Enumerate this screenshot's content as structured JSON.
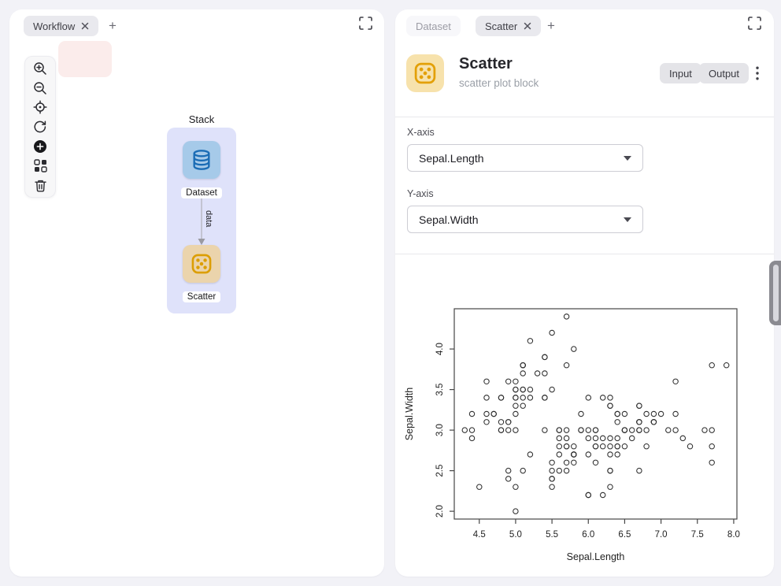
{
  "left_panel": {
    "tab": {
      "label": "Workflow"
    },
    "new_tab": "+",
    "toolbar": {
      "icons": [
        "zoom-in",
        "zoom-out",
        "locate",
        "reset-view",
        "add-node",
        "auto-layout",
        "delete"
      ]
    },
    "stack": {
      "title": "Stack",
      "nodes": [
        {
          "label": "Dataset",
          "icon": "database-icon"
        },
        {
          "label": "Scatter",
          "icon": "dice-icon"
        }
      ],
      "edge_label": "data"
    }
  },
  "right_panel": {
    "tabs": [
      {
        "label": "Dataset",
        "active": false
      },
      {
        "label": "Scatter",
        "active": true,
        "icon": "close-icon"
      }
    ],
    "new_tab": "+",
    "header": {
      "title": "Scatter",
      "subtitle": "scatter plot block",
      "input_button": "Input",
      "output_button": "Output",
      "menu_icon": "kebab-menu-icon"
    },
    "controls": {
      "x_label": "X-axis",
      "x_value": "Sepal.Length",
      "y_label": "Y-axis",
      "y_value": "Sepal.Width"
    }
  },
  "icons": {
    "close": "x-cross",
    "new_tab": "plus",
    "fullscreen": "corner-brackets",
    "zoom-in": "magnifier-plus",
    "zoom-out": "magnifier-minus",
    "locate": "crosshair-dot",
    "reset-view": "circular-arrow",
    "add-node": "filled-circle-plus",
    "auto-layout": "four-squares",
    "delete": "trash-can",
    "dataset": "database-cylinder",
    "scatter": "dice-five-dots",
    "dropdown": "caret-down"
  },
  "colors": {
    "page_bg": "#f2f2f7",
    "panel_bg": "#ffffff",
    "stack_bg": "#dfe2fa",
    "dataset_node_bg": "#a6cae9",
    "dataset_icon": "#1a6cb5",
    "scatter_node_bg": "#ebd4ac",
    "scatter_icon": "#dc9e02",
    "header_icon_bg": "#f7e2ac",
    "header_icon": "#e3a008",
    "tab_active_bg": "#e9e9ee",
    "pill_bg": "#e4e4e8",
    "edge": "#b4b4bc",
    "point_stroke": "#2e2e2e"
  },
  "chart_data": {
    "type": "scatter",
    "title": "",
    "xlabel": "Sepal.Length",
    "ylabel": "Sepal.Width",
    "xlim": [
      4.156,
      8.044
    ],
    "ylim": [
      1.904,
      4.496
    ],
    "x_ticks": [
      4.5,
      5.0,
      5.5,
      6.0,
      6.5,
      7.0,
      7.5,
      8.0
    ],
    "y_ticks": [
      2.0,
      2.5,
      3.0,
      3.5,
      4.0
    ],
    "grid": false,
    "legend": false,
    "marker": "open-circle",
    "x": [
      5.1,
      4.9,
      4.7,
      4.6,
      5.0,
      5.4,
      4.6,
      5.0,
      4.4,
      4.9,
      5.4,
      4.8,
      4.8,
      4.3,
      5.8,
      5.7,
      5.4,
      5.1,
      5.7,
      5.1,
      5.4,
      5.1,
      4.6,
      5.1,
      4.8,
      5.0,
      5.0,
      5.2,
      5.2,
      4.7,
      4.8,
      5.4,
      5.2,
      5.5,
      4.9,
      5.0,
      5.5,
      4.9,
      4.4,
      5.1,
      5.0,
      4.5,
      4.4,
      5.0,
      5.1,
      4.8,
      5.1,
      4.6,
      5.3,
      5.0,
      7.0,
      6.4,
      6.9,
      5.5,
      6.5,
      5.7,
      6.3,
      4.9,
      6.6,
      5.2,
      5.0,
      5.9,
      6.0,
      6.1,
      5.6,
      6.7,
      5.6,
      5.8,
      6.2,
      5.6,
      5.9,
      6.1,
      6.3,
      6.1,
      6.4,
      6.6,
      6.8,
      6.7,
      6.0,
      5.7,
      5.5,
      5.5,
      5.8,
      6.0,
      5.4,
      6.0,
      6.7,
      6.3,
      5.6,
      5.5,
      5.5,
      6.1,
      5.8,
      5.0,
      5.6,
      5.7,
      5.7,
      6.2,
      5.1,
      5.7,
      6.3,
      5.8,
      7.1,
      6.3,
      6.5,
      7.6,
      4.9,
      7.3,
      6.7,
      7.2,
      6.5,
      6.4,
      6.8,
      5.7,
      5.8,
      6.4,
      6.5,
      7.7,
      7.7,
      6.0,
      6.9,
      5.6,
      7.7,
      6.3,
      6.7,
      7.2,
      6.2,
      6.1,
      6.4,
      7.2,
      7.4,
      7.9,
      6.4,
      6.3,
      6.1,
      7.7,
      6.3,
      6.4,
      6.0,
      6.9,
      6.7,
      6.9,
      5.8,
      6.8,
      6.7,
      6.7,
      6.3,
      6.5,
      6.2,
      5.9
    ],
    "y": [
      3.5,
      3.0,
      3.2,
      3.1,
      3.6,
      3.9,
      3.4,
      3.4,
      2.9,
      3.1,
      3.7,
      3.4,
      3.0,
      3.0,
      4.0,
      4.4,
      3.9,
      3.5,
      3.8,
      3.8,
      3.4,
      3.7,
      3.6,
      3.3,
      3.4,
      3.0,
      3.4,
      3.5,
      3.4,
      3.2,
      3.1,
      3.4,
      4.1,
      4.2,
      3.1,
      3.2,
      3.5,
      3.6,
      3.0,
      3.4,
      3.5,
      2.3,
      3.2,
      3.5,
      3.8,
      3.0,
      3.8,
      3.2,
      3.7,
      3.3,
      3.2,
      3.2,
      3.1,
      2.3,
      2.8,
      2.8,
      3.3,
      2.4,
      2.9,
      2.7,
      2.0,
      3.0,
      2.2,
      2.9,
      2.9,
      3.1,
      3.0,
      2.7,
      2.2,
      2.5,
      3.2,
      2.8,
      2.5,
      2.8,
      2.9,
      3.0,
      2.8,
      3.0,
      2.9,
      2.6,
      2.4,
      2.4,
      2.7,
      2.7,
      3.0,
      3.4,
      3.1,
      2.3,
      3.0,
      2.5,
      2.6,
      3.0,
      2.6,
      2.3,
      2.7,
      3.0,
      2.9,
      2.9,
      2.5,
      2.8,
      3.3,
      2.7,
      3.0,
      2.9,
      3.0,
      3.0,
      2.5,
      2.9,
      2.5,
      3.6,
      3.2,
      2.7,
      3.0,
      2.5,
      2.8,
      3.2,
      3.0,
      3.8,
      2.6,
      2.2,
      3.2,
      2.8,
      2.8,
      2.7,
      3.3,
      3.2,
      2.8,
      3.0,
      2.8,
      3.0,
      2.8,
      3.8,
      2.8,
      2.8,
      2.6,
      3.0,
      3.4,
      3.1,
      3.0,
      3.1,
      3.1,
      3.1,
      2.7,
      3.2,
      3.3,
      3.0,
      2.5,
      3.0,
      3.4,
      3.0
    ]
  }
}
